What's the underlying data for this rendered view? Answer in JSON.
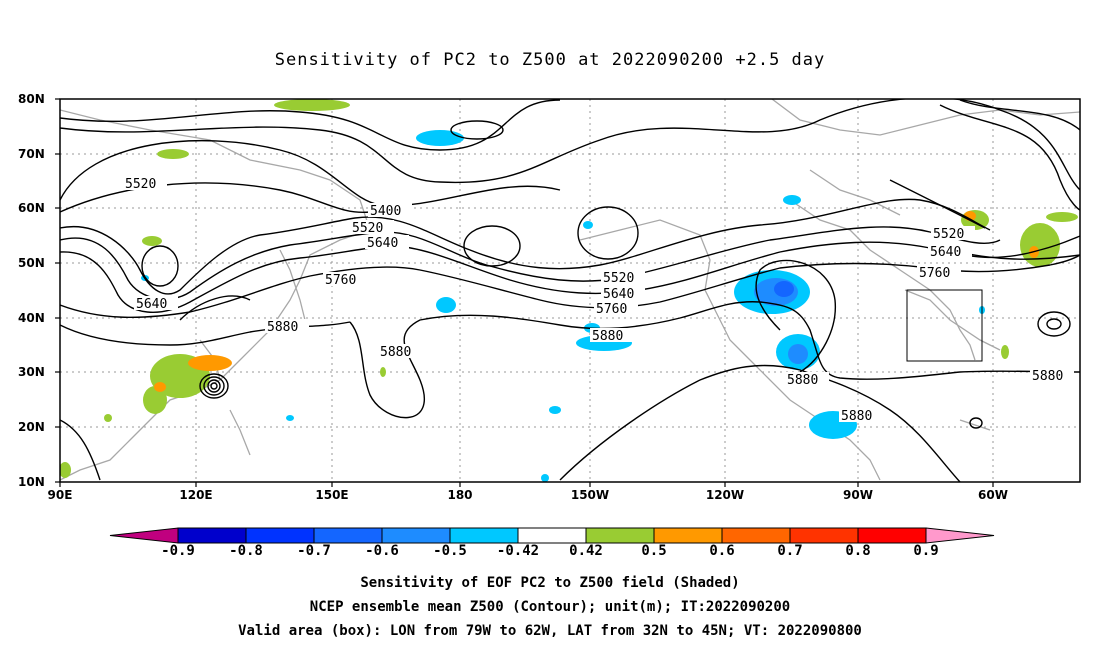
{
  "title": "Sensitivity of PC2 to Z500 at 2022090200 +2.5 day",
  "lat_labels": [
    "80N",
    "70N",
    "60N",
    "50N",
    "40N",
    "30N",
    "20N",
    "10N"
  ],
  "lon_labels": [
    "90E",
    "120E",
    "150E",
    "180",
    "150W",
    "120W",
    "90W",
    "60W"
  ],
  "contour_labels": {
    "c5520_w": "5520",
    "c5400": "5400",
    "c5520_c": "5520",
    "c5640_c": "5640",
    "c5760_c": "5760",
    "c5640_w": "5640",
    "c5880_w": "5880",
    "c5880_sw": "5880",
    "c5520_p": "5520",
    "c5640_p": "5640",
    "c5760_p": "5760",
    "c5880_p": "5880",
    "c5880_mx": "5880",
    "c5880_gm": "5880",
    "c5520_e": "5520",
    "c5640_e": "5640",
    "c5760_e": "5760",
    "c5880_e": "5880"
  },
  "colorbar": {
    "labels": [
      "-0.9",
      "-0.8",
      "-0.7",
      "-0.6",
      "-0.5",
      "-0.42",
      "0.42",
      "0.5",
      "0.6",
      "0.7",
      "0.8",
      "0.9"
    ],
    "colors": [
      "#c0007f",
      "#0000cc",
      "#0033ff",
      "#1466ff",
      "#1e8cff",
      "#00c8ff",
      "#ffffff",
      "#99cc33",
      "#ff9900",
      "#ff6600",
      "#ff3300",
      "#ff0000",
      "#ff99cc"
    ]
  },
  "captions": [
    "Sensitivity of EOF PC2 to Z500 field (Shaded)",
    "NCEP ensemble mean Z500 (Contour); unit(m); IT:2022090200",
    "Valid area (box): LON from 79W to 62W, LAT from 32N to 45N; VT: 2022090800"
  ]
}
